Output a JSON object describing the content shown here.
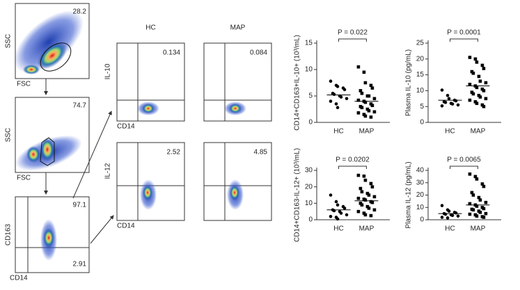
{
  "flow_panels": [
    {
      "y_label": "SSC",
      "x_label": "FSC",
      "gates": [
        "28.2"
      ]
    },
    {
      "y_label": "SSC",
      "x_label": "FSC",
      "gates": [
        "74.7"
      ]
    },
    {
      "y_label": "CD163",
      "x_label": "CD14",
      "gates": [
        "97.1",
        "2.91"
      ]
    }
  ],
  "stained": {
    "columns": [
      "HC",
      "MAP"
    ],
    "rows": [
      {
        "y_label": "IL-10",
        "x_label": "CD14",
        "gates": [
          "0.134",
          "0.084"
        ]
      },
      {
        "y_label": "IL-12",
        "x_label": "CD14",
        "gates": [
          "2.52",
          "4.85"
        ]
      }
    ]
  },
  "chart_data": [
    {
      "type": "dot",
      "y_label": "CD14+CD163+IL-10+ (10³/mL)",
      "p_label": "P = 0.022",
      "categories": [
        "HC",
        "MAP"
      ],
      "ylim": [
        0,
        15
      ],
      "yticks": [
        0,
        5,
        10,
        15
      ],
      "groups": [
        [
          7.8,
          7,
          6.8,
          6.5,
          6.2,
          5.5,
          5.3,
          5,
          4.8,
          4.5,
          4,
          3.5,
          2.8
        ],
        [
          10.5,
          9.5,
          7.5,
          7,
          6.5,
          6,
          5.5,
          5,
          5,
          4.5,
          4.2,
          4,
          3.8,
          3.5,
          3.2,
          3,
          2.8,
          2.5,
          2.2,
          2,
          1.8,
          1.5,
          1.2,
          1
        ]
      ],
      "medians": [
        5.2,
        4
      ],
      "color": "#000000"
    },
    {
      "type": "dot",
      "y_label": "Plasma IL-10 (pg/mL)",
      "p_label": "P = 0.0001",
      "categories": [
        "HC",
        "MAP"
      ],
      "ylim": [
        0,
        25
      ],
      "yticks": [
        0,
        5,
        10,
        15,
        20,
        25
      ],
      "groups": [
        [
          10.2,
          8.5,
          7.5,
          7,
          6.8,
          6.5,
          6.3,
          6,
          5.8,
          5.5,
          5.2
        ],
        [
          20.5,
          20,
          19,
          18,
          17,
          16,
          15.5,
          14.5,
          13,
          12.5,
          12,
          11.5,
          11,
          10.5,
          10,
          9.5,
          9,
          8.5,
          8,
          7.5,
          7,
          6.5,
          6,
          5.5,
          5
        ]
      ],
      "medians": [
        7,
        11.5
      ],
      "color": "#000000"
    },
    {
      "type": "dot",
      "y_label": "CD14+CD163-IL-12+ (10³/mL)",
      "p_label": "P = 0.0202",
      "categories": [
        "HC",
        "MAP"
      ],
      "ylim": [
        0,
        30
      ],
      "yticks": [
        0,
        10,
        20,
        30
      ],
      "groups": [
        [
          15,
          11,
          9,
          8,
          7,
          6,
          5.5,
          5,
          4,
          3,
          2,
          1.5,
          0.5
        ],
        [
          27,
          26.5,
          24,
          22,
          20,
          19,
          17,
          16,
          15,
          14,
          13,
          12.5,
          12,
          11,
          10.5,
          10,
          9,
          8,
          7,
          6,
          5,
          4,
          3,
          2.5
        ]
      ],
      "medians": [
        6,
        11.5
      ],
      "color": "#000000"
    },
    {
      "type": "dot",
      "y_label": "Plasma IL-12 (pg/mL)",
      "p_label": "P = 0.0065",
      "categories": [
        "HC",
        "MAP"
      ],
      "ylim": [
        0,
        40
      ],
      "yticks": [
        0,
        10,
        20,
        30,
        40
      ],
      "groups": [
        [
          11.5,
          8,
          7,
          6,
          5.5,
          5,
          4.5,
          4,
          3.5,
          3,
          2,
          1.5
        ],
        [
          37,
          35,
          33,
          29,
          27,
          22,
          20,
          18,
          16,
          14,
          13,
          12,
          11,
          10,
          9,
          8.5,
          8,
          7,
          6,
          5,
          4.5,
          4,
          3,
          2.5,
          2
        ]
      ],
      "medians": [
        5,
        12
      ],
      "color": "#000000"
    }
  ]
}
